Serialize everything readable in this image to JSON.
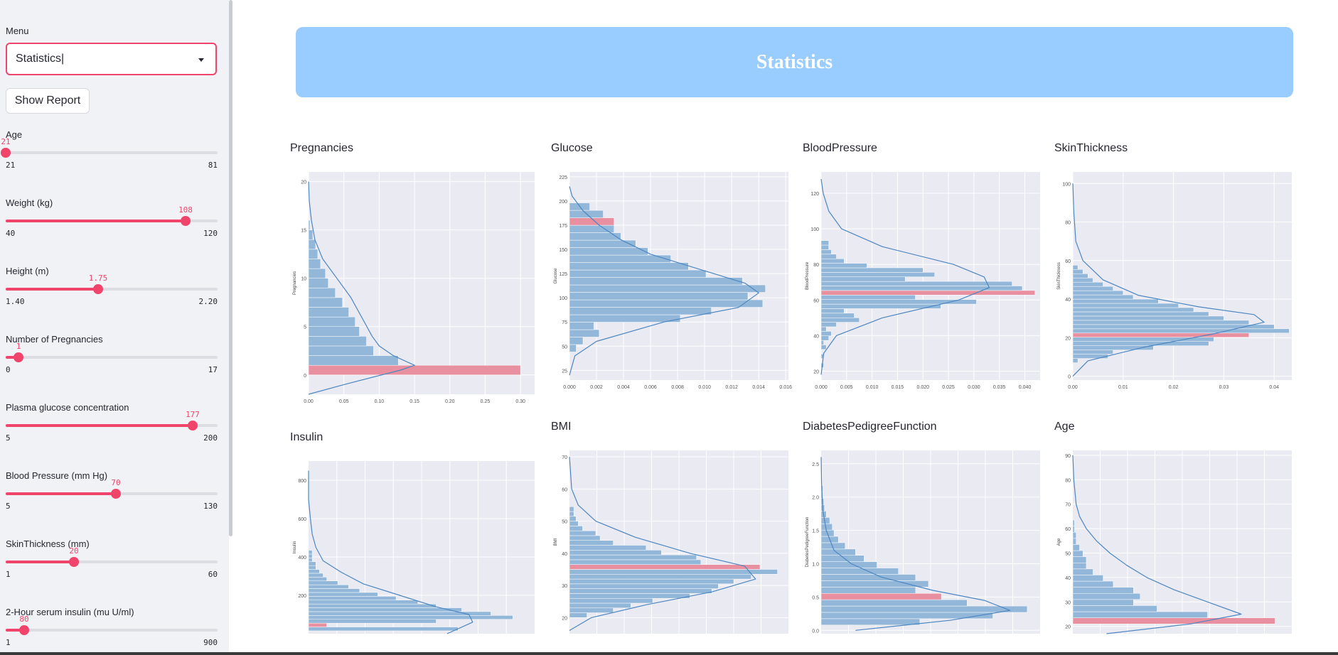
{
  "sidebar": {
    "menu_label": "Menu",
    "menu_value": "Statistics|",
    "report_button": "Show Report",
    "sliders": [
      {
        "label": "Age",
        "value": "21",
        "min": "21",
        "max": "81",
        "fraction": 0.0
      },
      {
        "label": "Weight (kg)",
        "value": "108",
        "min": "40",
        "max": "120",
        "fraction": 0.85
      },
      {
        "label": "Height (m)",
        "value": "1.75",
        "min": "1.40",
        "max": "2.20",
        "fraction": 0.4375
      },
      {
        "label": "Number of Pregnancies",
        "value": "1",
        "min": "0",
        "max": "17",
        "fraction": 0.0588
      },
      {
        "label": "Plasma glucose concentration",
        "value": "177",
        "min": "5",
        "max": "200",
        "fraction": 0.882
      },
      {
        "label": "Blood Pressure (mm Hg)",
        "value": "70",
        "min": "5",
        "max": "130",
        "fraction": 0.52
      },
      {
        "label": "SkinThickness (mm)",
        "value": "20",
        "min": "1",
        "max": "60",
        "fraction": 0.322
      },
      {
        "label": "2-Hour serum insulin (mu U/ml)",
        "value": "80",
        "min": "1",
        "max": "900",
        "fraction": 0.088
      }
    ]
  },
  "main": {
    "title": "Statistics"
  },
  "colors": {
    "accent": "#f0446b",
    "banner": "#99ccff",
    "bar": "#92b7d9",
    "highlight": "#e8909f",
    "kde": "#4c86c1",
    "plot_bg": "#eaeaf2"
  },
  "chart_data": [
    {
      "type": "bar",
      "orientation": "horizontal",
      "title": "Pregnancies",
      "ylabel": "Pregnancies",
      "ylim": [
        -2,
        21
      ],
      "xlim": [
        0,
        0.32
      ],
      "yticks": [
        "0",
        "5",
        "10",
        "15",
        "20"
      ],
      "xticks": [
        "0.00",
        "0.05",
        "0.10",
        "0.15",
        "0.20",
        "0.25",
        "0.30"
      ],
      "bin_start": 0,
      "bin_width": 1,
      "values": [
        0.3,
        0.127,
        0.092,
        0.082,
        0.072,
        0.066,
        0.057,
        0.048,
        0.038,
        0.028,
        0.024,
        0.017,
        0.013,
        0.01,
        0.006,
        0.002
      ],
      "highlight_index": 0,
      "kde_y": [
        -3,
        -1,
        0.5,
        1,
        2,
        3,
        4,
        6,
        8,
        10,
        12,
        14,
        16,
        18,
        20
      ],
      "kde_x": [
        0.0,
        0.05,
        0.13,
        0.15,
        0.12,
        0.1,
        0.09,
        0.075,
        0.06,
        0.04,
        0.02,
        0.009,
        0.004,
        0.001,
        0.0
      ]
    },
    {
      "type": "bar",
      "orientation": "horizontal",
      "title": "Glucose",
      "ylabel": "Glucose",
      "ylim": [
        15,
        230
      ],
      "xlim": [
        0,
        0.0162
      ],
      "yticks": [
        "25",
        "50",
        "75",
        "100",
        "125",
        "150",
        "175",
        "200",
        "225"
      ],
      "xticks": [
        "0.000",
        "0.002",
        "0.004",
        "0.006",
        "0.008",
        "0.010",
        "0.012",
        "0.014",
        "0.016"
      ],
      "bin_start": 44,
      "bin_width": 7.7,
      "values": [
        0.0005,
        0.001,
        0.0022,
        0.0018,
        0.0082,
        0.0105,
        0.0143,
        0.0132,
        0.0145,
        0.0128,
        0.0101,
        0.0088,
        0.0075,
        0.0058,
        0.0049,
        0.0038,
        0.0033,
        0.0033,
        0.0025,
        0.0015
      ],
      "highlight_index": 17,
      "kde_y": [
        20,
        40,
        55,
        75,
        90,
        105,
        115,
        130,
        145,
        160,
        175,
        190,
        205,
        215
      ],
      "kde_x": [
        0.0,
        0.0004,
        0.002,
        0.007,
        0.0125,
        0.014,
        0.013,
        0.0095,
        0.006,
        0.0038,
        0.0022,
        0.001,
        0.0002,
        0.0
      ]
    },
    {
      "type": "bar",
      "orientation": "horizontal",
      "title": "BloodPressure",
      "ylabel": "BloodPressure",
      "ylim": [
        15,
        132
      ],
      "xlim": [
        0,
        0.043
      ],
      "yticks": [
        "20",
        "40",
        "60",
        "80",
        "100",
        "120"
      ],
      "xticks": [
        "0.000",
        "0.005",
        "0.010",
        "0.015",
        "0.020",
        "0.025",
        "0.030",
        "0.035",
        "0.040"
      ],
      "bin_start": 22,
      "bin_width": 2.55,
      "values": [
        0.0005,
        0.0,
        0.0005,
        0.0,
        0.001,
        0.0005,
        0.0015,
        0.002,
        0.001,
        0.003,
        0.0075,
        0.0065,
        0.0045,
        0.0235,
        0.0305,
        0.0185,
        0.042,
        0.0395,
        0.0375,
        0.0165,
        0.0223,
        0.02,
        0.009,
        0.0045,
        0.003,
        0.002,
        0.0015,
        0.0015
      ],
      "highlight_index": 16,
      "kde_y": [
        18,
        30,
        40,
        50,
        60,
        67,
        73,
        80,
        90,
        100,
        110,
        120,
        128
      ],
      "kde_x": [
        0.0,
        0.0005,
        0.003,
        0.012,
        0.027,
        0.033,
        0.032,
        0.026,
        0.012,
        0.004,
        0.0015,
        0.0004,
        0.0
      ]
    },
    {
      "type": "bar",
      "orientation": "horizontal",
      "title": "SkinThickness",
      "ylabel": "SkinThickness",
      "ylim": [
        -2,
        106
      ],
      "xlim": [
        0,
        0.0435
      ],
      "yticks": [
        "0",
        "20",
        "40",
        "60",
        "80",
        "100"
      ],
      "xticks": [
        "0.00",
        "0.01",
        "0.02",
        "0.03",
        "0.04"
      ],
      "bin_start": 7,
      "bin_width": 2.2,
      "values": [
        0.001,
        0.007,
        0.008,
        0.016,
        0.027,
        0.028,
        0.035,
        0.043,
        0.04,
        0.035,
        0.03,
        0.027,
        0.024,
        0.021,
        0.017,
        0.012,
        0.01,
        0.008,
        0.006,
        0.004,
        0.003,
        0.002,
        0.001
      ],
      "highlight_index": 6,
      "kde_y": [
        0,
        8,
        15,
        22,
        28,
        32,
        36,
        42,
        50,
        60,
        70,
        85,
        100
      ],
      "kde_x": [
        0.0,
        0.003,
        0.014,
        0.028,
        0.038,
        0.036,
        0.025,
        0.013,
        0.006,
        0.002,
        0.0006,
        0.0002,
        0.0
      ]
    },
    {
      "type": "bar",
      "orientation": "horizontal",
      "title": "Insulin",
      "ylabel": "Insulin",
      "ylim": [
        0,
        900
      ],
      "xlim": [
        0,
        0.0062
      ],
      "yticks": [
        "200",
        "400",
        "600",
        "800"
      ],
      "xticks": [],
      "bin_start": 15,
      "bin_width": 20,
      "values": [
        0.0041,
        0.0005,
        0.0035,
        0.0056,
        0.005,
        0.0042,
        0.0035,
        0.003,
        0.0024,
        0.0019,
        0.0014,
        0.0011,
        0.0008,
        0.0005,
        0.0004,
        0.0003,
        0.0002,
        0.0002,
        0.0001,
        0.0001,
        0.0001
      ],
      "highlight_index": 1,
      "kde_y": [
        0,
        60,
        100,
        140,
        200,
        260,
        320,
        380,
        450,
        520,
        600,
        700,
        850
      ],
      "kde_x": [
        0.0038,
        0.0045,
        0.0044,
        0.0035,
        0.0025,
        0.0015,
        0.0009,
        0.0004,
        0.0002,
        0.0001,
        5e-05,
        0.0,
        0.0
      ]
    },
    {
      "type": "bar",
      "orientation": "horizontal",
      "title": "BMI",
      "ylabel": "BMI",
      "ylim": [
        15,
        72
      ],
      "xlim": [
        0,
        0.1
      ],
      "yticks": [
        "20",
        "30",
        "40",
        "50",
        "60",
        "70"
      ],
      "xticks": [],
      "bin_start": 20,
      "bin_width": 1.5,
      "values": [
        0.008,
        0.02,
        0.028,
        0.038,
        0.055,
        0.065,
        0.068,
        0.075,
        0.083,
        0.095,
        0.087,
        0.06,
        0.058,
        0.042,
        0.035,
        0.02,
        0.014,
        0.012,
        0.006,
        0.004,
        0.003,
        0.002,
        0.002
      ],
      "highlight_index": 10,
      "kde_y": [
        16,
        20,
        24,
        28,
        32,
        36,
        40,
        45,
        50,
        55,
        60,
        70
      ],
      "kde_x": [
        0.0,
        0.01,
        0.035,
        0.065,
        0.085,
        0.08,
        0.055,
        0.03,
        0.012,
        0.004,
        0.001,
        0.0
      ]
    },
    {
      "type": "bar",
      "orientation": "horizontal",
      "title": "DiabetesPedigreeFunction",
      "ylabel": "DiabetesPedigreeFunction",
      "ylim": [
        -0.05,
        2.7
      ],
      "xlim": [
        0,
        2.55
      ],
      "yticks": [
        "0.0",
        "0.5",
        "1.0",
        "1.5",
        "2.0",
        "2.5"
      ],
      "xticks": [],
      "bin_start": 0.08,
      "bin_width": 0.095,
      "values": [
        1.15,
        2.0,
        2.4,
        1.7,
        1.4,
        1.1,
        1.25,
        1.1,
        0.9,
        0.65,
        0.5,
        0.4,
        0.28,
        0.2,
        0.15,
        0.13,
        0.1,
        0.06,
        0.04,
        0.03,
        0.02,
        0.02,
        0.01,
        0.01,
        0.01
      ],
      "highlight_index": 4,
      "kde_y": [
        0.0,
        0.15,
        0.3,
        0.45,
        0.6,
        0.8,
        1.0,
        1.2,
        1.5,
        1.8,
        2.2,
        2.6
      ],
      "kde_x": [
        0.4,
        1.5,
        2.2,
        1.9,
        1.3,
        0.7,
        0.35,
        0.15,
        0.06,
        0.02,
        0.005,
        0.0
      ]
    },
    {
      "type": "bar",
      "orientation": "horizontal",
      "title": "Age",
      "ylabel": "Age",
      "ylim": [
        17,
        92
      ],
      "xlim": [
        0,
        0.065
      ],
      "yticks": [
        "20",
        "30",
        "40",
        "50",
        "60",
        "70",
        "80",
        "90"
      ],
      "xticks": [],
      "bin_start": 21,
      "bin_width": 2.5,
      "values": [
        0.06,
        0.04,
        0.025,
        0.018,
        0.02,
        0.018,
        0.012,
        0.009,
        0.006,
        0.004,
        0.004,
        0.003,
        0.002,
        0.001,
        0.001,
        0.0005,
        0.0005
      ],
      "highlight_index": 0,
      "kde_y": [
        17,
        21,
        25,
        30,
        35,
        40,
        45,
        50,
        55,
        60,
        65,
        70,
        80,
        90
      ],
      "kde_x": [
        0.01,
        0.035,
        0.05,
        0.04,
        0.03,
        0.022,
        0.016,
        0.011,
        0.007,
        0.004,
        0.002,
        0.001,
        0.0003,
        0.0
      ]
    }
  ]
}
